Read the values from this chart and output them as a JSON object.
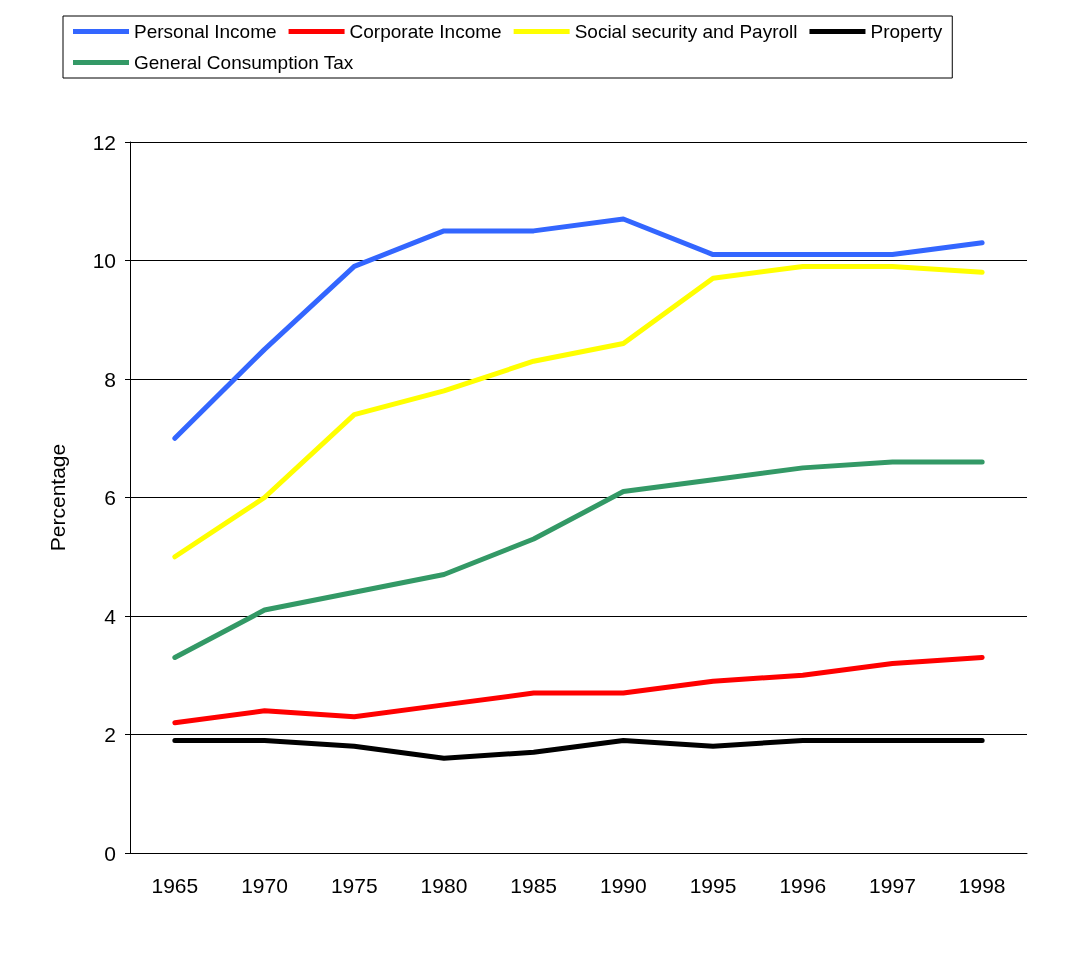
{
  "chart_data": {
    "type": "line",
    "ylabel": "Percentage",
    "categories": [
      "1965",
      "1970",
      "1975",
      "1980",
      "1985",
      "1990",
      "1995",
      "1996",
      "1997",
      "1998"
    ],
    "series": [
      {
        "name": "Personal Income",
        "color": "#3366ff",
        "values": [
          7.0,
          8.5,
          9.9,
          10.5,
          10.5,
          10.7,
          10.1,
          10.1,
          10.1,
          10.3
        ]
      },
      {
        "name": "Corporate Income",
        "color": "#ff0000",
        "values": [
          2.2,
          2.4,
          2.3,
          2.5,
          2.7,
          2.7,
          2.9,
          3.0,
          3.2,
          3.3
        ]
      },
      {
        "name": "Social security and Payroll",
        "color": "#ffff00",
        "values": [
          5.0,
          6.0,
          7.4,
          7.8,
          8.3,
          8.6,
          9.7,
          9.9,
          9.9,
          9.8
        ]
      },
      {
        "name": "Property",
        "color": "#000000",
        "values": [
          1.9,
          1.9,
          1.8,
          1.6,
          1.7,
          1.9,
          1.8,
          1.9,
          1.9,
          1.9
        ]
      },
      {
        "name": "General Consumption Tax",
        "color": "#339966",
        "values": [
          3.3,
          4.1,
          4.4,
          4.7,
          5.3,
          6.1,
          6.3,
          6.5,
          6.6,
          6.6
        ]
      }
    ],
    "ylim": [
      0,
      12
    ],
    "yticks": [
      0,
      2,
      4,
      6,
      8,
      10,
      12
    ],
    "grid": "y",
    "legend": "top",
    "marker": "none",
    "line_style": "solid"
  }
}
